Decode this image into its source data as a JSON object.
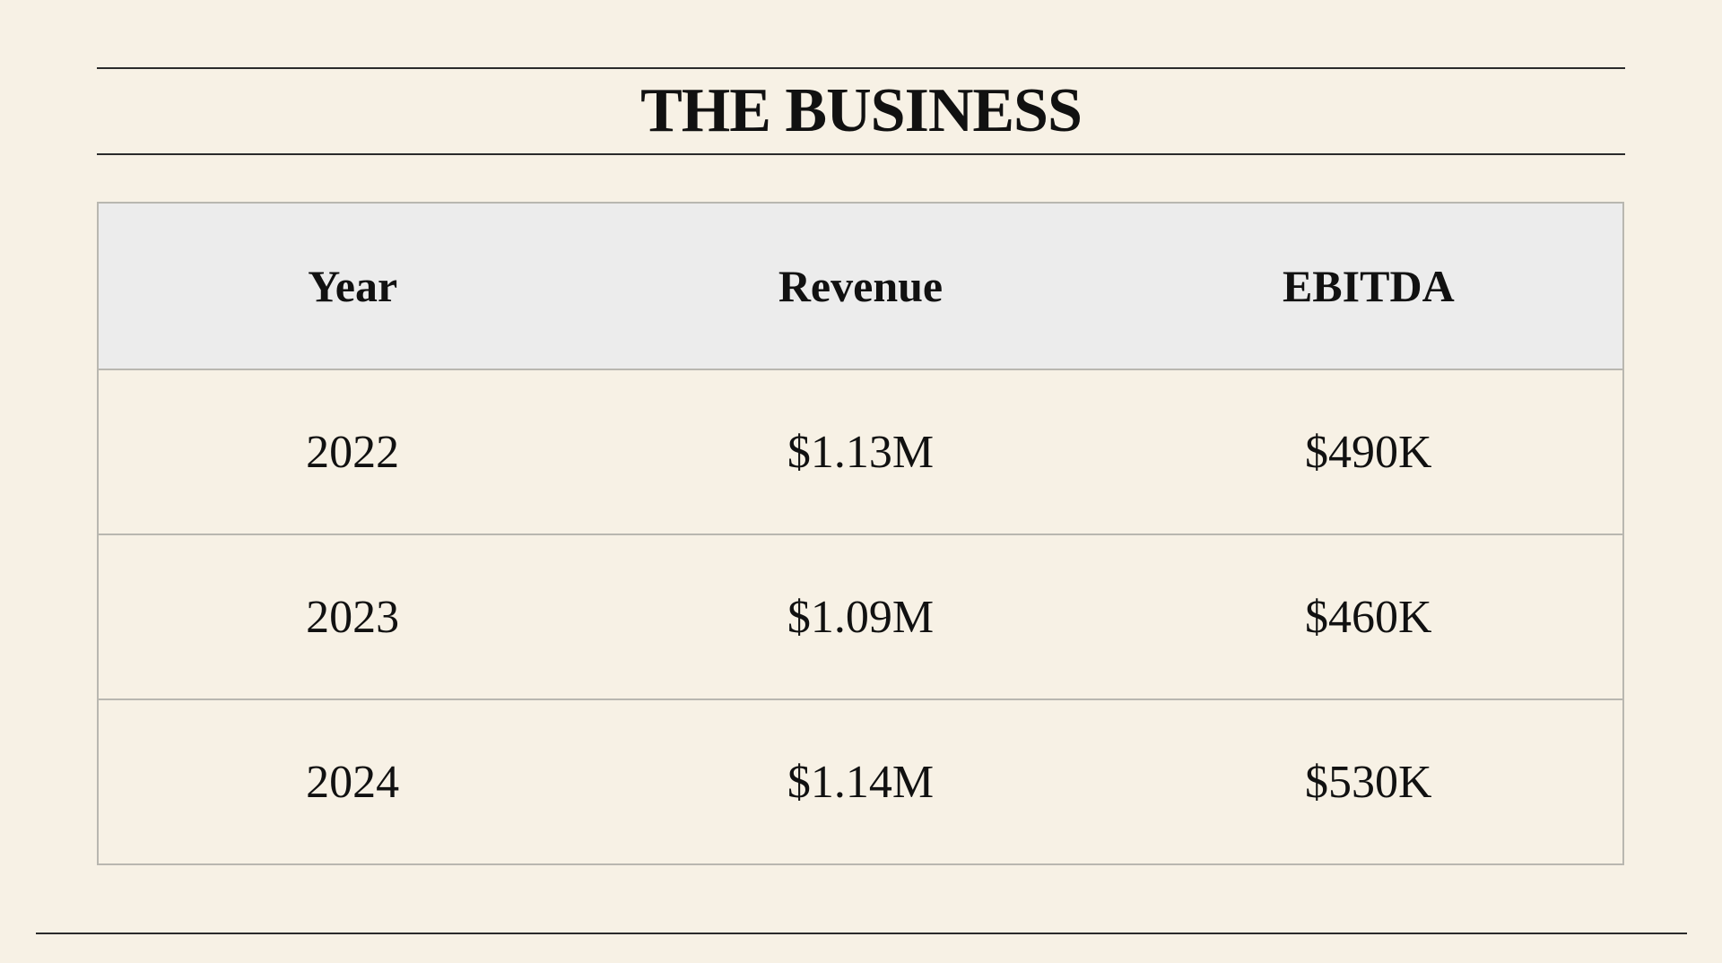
{
  "title": "THE BUSINESS",
  "table": {
    "headers": [
      "Year",
      "Revenue",
      "EBITDA"
    ],
    "rows": [
      [
        "2022",
        "$1.13M",
        "$490K"
      ],
      [
        "2023",
        "$1.09M",
        "$460K"
      ],
      [
        "2024",
        "$1.14M",
        "$530K"
      ]
    ]
  },
  "colors": {
    "background": "#f7f1e5",
    "header_fill": "#ececec",
    "text": "#111111",
    "rule": "#2b2b2b",
    "table_border": "#b9b7b0"
  }
}
